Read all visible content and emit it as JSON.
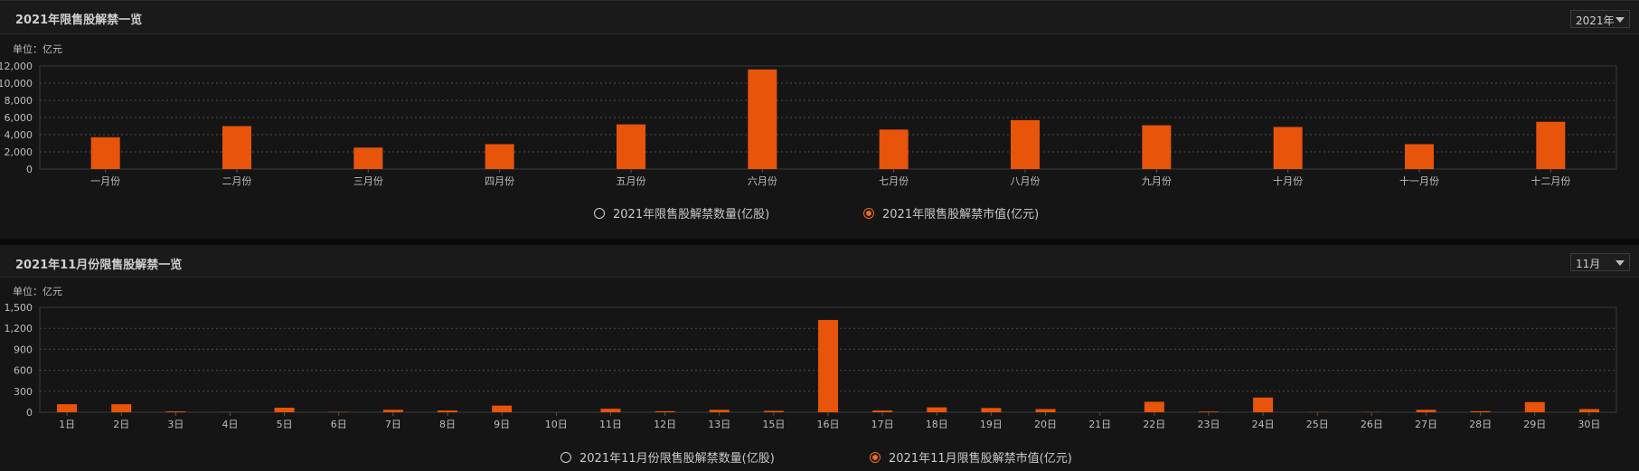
{
  "panels": [
    {
      "title": "2021年限售股解禁一览",
      "select_value": "2021年",
      "unit": "单位：亿元",
      "legend": [
        {
          "label": "2021年限售股解禁数量(亿股)",
          "selected": false
        },
        {
          "label": "2021年限售股解禁市值(亿元)",
          "selected": true
        }
      ]
    },
    {
      "title": "2021年11月份限售股解禁一览",
      "select_value": "11月",
      "unit": "单位：亿元",
      "legend": [
        {
          "label": "2021年11月份限售股解禁数量(亿股)",
          "selected": false
        },
        {
          "label": "2021年11月限售股解禁市值(亿元)",
          "selected": true
        }
      ]
    }
  ],
  "colors": {
    "bar": "#e8540a",
    "radio_on": "#f06a1e",
    "background": "#151515"
  },
  "chart_data": [
    {
      "type": "bar",
      "title": "2021年限售股解禁一览",
      "categories": [
        "一月份",
        "二月份",
        "三月份",
        "四月份",
        "五月份",
        "六月份",
        "七月份",
        "八月份",
        "九月份",
        "十月份",
        "十一月份",
        "十二月份"
      ],
      "series": [
        {
          "name": "2021年限售股解禁市值(亿元)",
          "values": [
            3700,
            5000,
            2500,
            2900,
            5200,
            11600,
            4600,
            5700,
            5100,
            4900,
            2900,
            5500
          ]
        }
      ],
      "y_ticks": [
        0,
        2000,
        4000,
        6000,
        8000,
        10000,
        12000
      ],
      "y_tick_labels": [
        "0",
        "2,000",
        "4,000",
        "6,000",
        "8,000",
        "10,000",
        "12,000"
      ],
      "ylim": [
        0,
        12000
      ],
      "grid": true,
      "legend_position": "bottom-center"
    },
    {
      "type": "bar",
      "title": "2021年11月份限售股解禁一览",
      "categories": [
        "1日",
        "2日",
        "3日",
        "4日",
        "5日",
        "6日",
        "7日",
        "8日",
        "9日",
        "10日",
        "11日",
        "12日",
        "13日",
        "15日",
        "16日",
        "17日",
        "18日",
        "19日",
        "20日",
        "21日",
        "22日",
        "23日",
        "24日",
        "25日",
        "26日",
        "27日",
        "28日",
        "29日",
        "30日"
      ],
      "series": [
        {
          "name": "2021年11月限售股解禁市值(亿元)",
          "values": [
            115,
            115,
            12,
            2,
            65,
            5,
            35,
            25,
            95,
            0,
            50,
            15,
            35,
            20,
            1320,
            25,
            70,
            60,
            45,
            0,
            150,
            10,
            210,
            3,
            3,
            35,
            15,
            145,
            45
          ]
        }
      ],
      "y_ticks": [
        0,
        300,
        600,
        900,
        1200,
        1500
      ],
      "y_tick_labels": [
        "0",
        "300",
        "600",
        "900",
        "1,200",
        "1,500"
      ],
      "ylim": [
        0,
        1500
      ],
      "grid": true,
      "legend_position": "bottom-center"
    }
  ]
}
